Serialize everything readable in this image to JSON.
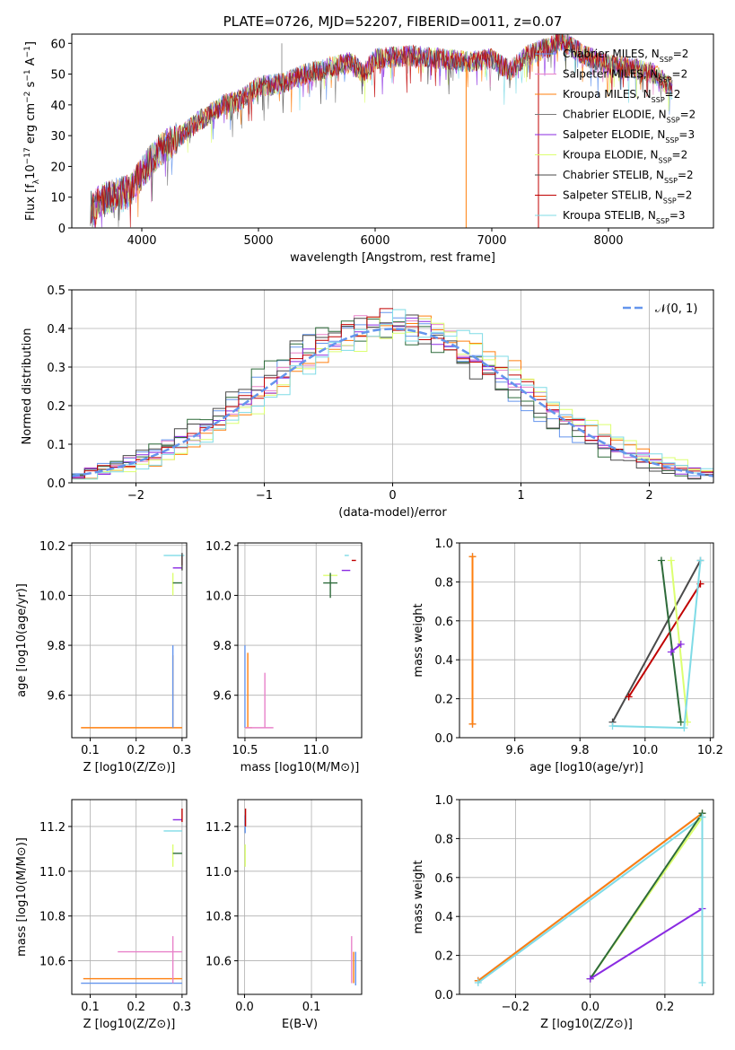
{
  "colors": {
    "Chabrier MILES": "#6495ed",
    "Salpeter MILES": "#e882c9",
    "Kroupa MILES": "#ff7f0e",
    "Chabrier ELODIE": "#e0e0e0",
    "Salpeter ELODIE": "#8a2be2",
    "Kroupa ELODIE": "#dcff70",
    "Chabrier STELIB": "#4a4a4a",
    "Salpeter STELIB": "#c00000",
    "Kroupa STELIB": "#7fdbe6",
    "normal": "#6495ed",
    "grid": "#b0b0b0"
  },
  "chart_data": [
    {
      "id": "spectrum",
      "type": "line",
      "title": "PLATE=0726, MJD=52207, FIBERID=0011, z=0.07",
      "xlabel": "wavelength [Angstrom, rest frame]",
      "ylabel_parts": [
        "Flux [f",
        "λ",
        "10",
        "−17",
        " erg cm",
        "−2",
        " s",
        "−1",
        " A",
        "−1",
        "]"
      ],
      "xlim": [
        3400,
        8900
      ],
      "ylim": [
        0,
        63
      ],
      "xticks": [
        4000,
        5000,
        6000,
        7000,
        8000
      ],
      "yticks": [
        0,
        10,
        20,
        30,
        40,
        50,
        60
      ],
      "grid": false,
      "legend_position": "right",
      "legend": [
        {
          "model": "Chabrier MILES",
          "nssp": "2"
        },
        {
          "model": "Salpeter MILES",
          "nssp": "2"
        },
        {
          "model": "Kroupa MILES",
          "nssp": "2"
        },
        {
          "model": "Chabrier ELODIE",
          "nssp": "2"
        },
        {
          "model": "Salpeter ELODIE",
          "nssp": "3"
        },
        {
          "model": "Kroupa ELODIE",
          "nssp": "2"
        },
        {
          "model": "Chabrier STELIB",
          "nssp": "2"
        },
        {
          "model": "Salpeter STELIB",
          "nssp": "2"
        },
        {
          "model": "Kroupa STELIB",
          "nssp": "3"
        }
      ],
      "continuum": [
        [
          3560,
          7
        ],
        [
          3700,
          10
        ],
        [
          3900,
          12
        ],
        [
          4000,
          18
        ],
        [
          4150,
          25
        ],
        [
          4300,
          29
        ],
        [
          4500,
          35
        ],
        [
          4700,
          40
        ],
        [
          4860,
          42
        ],
        [
          5000,
          46
        ],
        [
          5200,
          47
        ],
        [
          5400,
          50
        ],
        [
          5600,
          52
        ],
        [
          5800,
          54
        ],
        [
          5900,
          50
        ],
        [
          6000,
          55
        ],
        [
          6300,
          56
        ],
        [
          6563,
          55
        ],
        [
          6800,
          54
        ],
        [
          7000,
          55
        ],
        [
          7150,
          51
        ],
        [
          7300,
          56
        ],
        [
          7500,
          59
        ],
        [
          7600,
          61
        ],
        [
          7800,
          56
        ],
        [
          8000,
          53
        ],
        [
          8200,
          52
        ],
        [
          8400,
          50
        ],
        [
          8550,
          45
        ]
      ],
      "spikes": [
        {
          "x": 5200,
          "y": 60,
          "color": "#9a9a9a"
        },
        {
          "x": 6780,
          "y": 0,
          "color": "#ff7f0e"
        },
        {
          "x": 7400,
          "y": 0,
          "color": "#c00000"
        }
      ]
    },
    {
      "id": "residuals",
      "type": "bar",
      "xlabel": "(data-model)/error",
      "ylabel": "Normed distribution",
      "xlim": [
        -2.5,
        2.5
      ],
      "ylim": [
        0,
        0.5
      ],
      "xticks": [
        -2,
        -1,
        0,
        1,
        2
      ],
      "yticks": [
        0.0,
        0.1,
        0.2,
        0.3,
        0.4,
        0.5
      ],
      "grid": true,
      "legend_position": "top-right",
      "legend_label": "N(0, 1)",
      "bin_width": 0.1,
      "note": "nine step histograms; one per model",
      "normal_mean": 0,
      "normal_std": 1
    },
    {
      "id": "age-vs-Z",
      "type": "scatter",
      "xlabel": "Z [log10(Z/Z⊙)]",
      "ylabel": "age [log10(age/yr)]",
      "xlim": [
        0.06,
        0.31
      ],
      "ylim": [
        9.43,
        10.21
      ],
      "xticks": [
        0.1,
        0.2,
        0.3
      ],
      "yticks": [
        9.6,
        9.8,
        10.0,
        10.2
      ],
      "grid": true,
      "segments": [
        {
          "color": "#ff7f0e",
          "x1": 0.08,
          "y1": 9.47,
          "x2": 0.3,
          "y2": 9.47
        },
        {
          "color": "#ff7f0e",
          "x1": 0.28,
          "y1": 9.47,
          "x2": 0.28,
          "y2": 9.76
        },
        {
          "color": "#6495ed",
          "x1": 0.28,
          "y1": 9.47,
          "x2": 0.28,
          "y2": 9.8
        },
        {
          "color": "#7fdbe6",
          "x1": 0.26,
          "y1": 10.16,
          "x2": 0.305,
          "y2": 10.16
        },
        {
          "color": "#c00000",
          "x1": 0.3,
          "y1": 10.12,
          "x2": 0.3,
          "y2": 10.16
        },
        {
          "color": "#8a2be2",
          "x1": 0.28,
          "y1": 10.11,
          "x2": 0.3,
          "y2": 10.11
        },
        {
          "color": "#dcff70",
          "x1": 0.28,
          "y1": 10.0,
          "x2": 0.28,
          "y2": 10.09
        },
        {
          "color": "#2e6b3a",
          "x1": 0.28,
          "y1": 10.05,
          "x2": 0.3,
          "y2": 10.05
        },
        {
          "color": "#4a4a4a",
          "x1": 0.3,
          "y1": 10.1,
          "x2": 0.3,
          "y2": 10.17
        }
      ]
    },
    {
      "id": "age-vs-mass",
      "type": "scatter",
      "xlabel": "mass [log10(M/M⊙)]",
      "xlim": [
        10.45,
        11.32
      ],
      "ylim": [
        9.43,
        10.21
      ],
      "xticks": [
        10.5,
        11.0
      ],
      "yticks": [
        9.6,
        9.8,
        10.0,
        10.2
      ],
      "grid": true,
      "segments": [
        {
          "color": "#6495ed",
          "x1": 10.5,
          "y1": 9.47,
          "x2": 10.5,
          "y2": 9.8
        },
        {
          "color": "#ff7f0e",
          "x1": 10.52,
          "y1": 9.47,
          "x2": 10.52,
          "y2": 9.77
        },
        {
          "color": "#ff7f0e",
          "x1": 10.5,
          "y1": 9.47,
          "x2": 10.55,
          "y2": 9.47
        },
        {
          "color": "#e882c9",
          "x1": 10.5,
          "y1": 9.47,
          "x2": 10.7,
          "y2": 9.47
        },
        {
          "color": "#e882c9",
          "x1": 10.64,
          "y1": 9.47,
          "x2": 10.64,
          "y2": 9.69
        },
        {
          "color": "#dcff70",
          "x1": 11.05,
          "y1": 10.08,
          "x2": 11.15,
          "y2": 10.08
        },
        {
          "color": "#2e6b3a",
          "x1": 11.05,
          "y1": 10.05,
          "x2": 11.15,
          "y2": 10.05
        },
        {
          "color": "#2e6b3a",
          "x1": 11.1,
          "y1": 9.99,
          "x2": 11.1,
          "y2": 10.09
        },
        {
          "color": "#8a2be2",
          "x1": 11.18,
          "y1": 10.1,
          "x2": 11.24,
          "y2": 10.1
        },
        {
          "color": "#c00000",
          "x1": 11.25,
          "y1": 10.14,
          "x2": 11.28,
          "y2": 10.14
        },
        {
          "color": "#7fdbe6",
          "x1": 11.2,
          "y1": 10.16,
          "x2": 11.23,
          "y2": 10.16
        }
      ]
    },
    {
      "id": "mass-weight-vs-age",
      "type": "line",
      "xlabel": "age [log10(age/yr)]",
      "ylabel": "mass weight",
      "xlim": [
        9.43,
        10.21
      ],
      "ylim": [
        0,
        1
      ],
      "xticks": [
        9.6,
        9.8,
        10.0,
        10.2
      ],
      "yticks": [
        0.0,
        0.2,
        0.4,
        0.6,
        0.8,
        1.0
      ],
      "grid": true,
      "series": [
        {
          "color": "#6495ed",
          "x": [
            9.47,
            9.47
          ],
          "y": [
            0.07,
            0.93
          ]
        },
        {
          "color": "#ff7f0e",
          "x": [
            9.47,
            9.47
          ],
          "y": [
            0.07,
            0.93
          ]
        },
        {
          "color": "#4a4a4a",
          "x": [
            9.9,
            10.17
          ],
          "y": [
            0.08,
            0.91
          ]
        },
        {
          "color": "#c00000",
          "x": [
            9.95,
            10.17
          ],
          "y": [
            0.21,
            0.79
          ]
        },
        {
          "color": "#2e6b3a",
          "x": [
            10.05,
            10.11
          ],
          "y": [
            0.91,
            0.08
          ]
        },
        {
          "color": "#dcff70",
          "x": [
            10.08,
            10.13
          ],
          "y": [
            0.91,
            0.08
          ]
        },
        {
          "color": "#8a2be2",
          "x": [
            10.08,
            10.11
          ],
          "y": [
            0.44,
            0.48
          ]
        },
        {
          "color": "#7fdbe6",
          "x": [
            9.9,
            10.12,
            10.17
          ],
          "y": [
            0.06,
            0.05,
            0.91
          ]
        }
      ]
    },
    {
      "id": "mass-vs-Z",
      "type": "scatter",
      "xlabel": "Z [log10(Z/Z⊙)]",
      "ylabel": "mass [log10(M/M⊙)]",
      "xlim": [
        0.06,
        0.31
      ],
      "ylim": [
        10.45,
        11.32
      ],
      "xticks": [
        0.1,
        0.2,
        0.3
      ],
      "yticks": [
        10.6,
        10.8,
        11.0,
        11.2
      ],
      "grid": true,
      "segments": [
        {
          "color": "#6495ed",
          "x1": 0.08,
          "y1": 10.5,
          "x2": 0.3,
          "y2": 10.5
        },
        {
          "color": "#ff7f0e",
          "x1": 0.085,
          "y1": 10.52,
          "x2": 0.3,
          "y2": 10.52
        },
        {
          "color": "#e882c9",
          "x1": 0.16,
          "y1": 10.64,
          "x2": 0.3,
          "y2": 10.64
        },
        {
          "color": "#e882c9",
          "x1": 0.28,
          "y1": 10.5,
          "x2": 0.28,
          "y2": 10.71
        },
        {
          "color": "#7fdbe6",
          "x1": 0.26,
          "y1": 11.18,
          "x2": 0.3,
          "y2": 11.18
        },
        {
          "color": "#dcff70",
          "x1": 0.28,
          "y1": 11.02,
          "x2": 0.28,
          "y2": 11.12
        },
        {
          "color": "#2e6b3a",
          "x1": 0.28,
          "y1": 11.08,
          "x2": 0.3,
          "y2": 11.08
        },
        {
          "color": "#8a2be2",
          "x1": 0.28,
          "y1": 11.23,
          "x2": 0.3,
          "y2": 11.23
        },
        {
          "color": "#c00000",
          "x1": 0.3,
          "y1": 11.22,
          "x2": 0.3,
          "y2": 11.28
        }
      ]
    },
    {
      "id": "mass-vs-EBV",
      "type": "scatter",
      "xlabel": "E(B-V)",
      "xlim": [
        -0.01,
        0.175
      ],
      "ylim": [
        10.45,
        11.32
      ],
      "xticks": [
        0.0,
        0.1
      ],
      "yticks": [
        10.6,
        10.8,
        11.0,
        11.2
      ],
      "grid": true,
      "segments": [
        {
          "color": "#6495ed",
          "x1": 0.001,
          "y1": 11.17,
          "x2": 0.001,
          "y2": 11.25
        },
        {
          "color": "#dcff70",
          "x1": 0.001,
          "y1": 11.02,
          "x2": 0.001,
          "y2": 11.12
        },
        {
          "color": "#c00000",
          "x1": 0.0015,
          "y1": 11.2,
          "x2": 0.0015,
          "y2": 11.28
        },
        {
          "color": "#e882c9",
          "x1": 0.16,
          "y1": 10.5,
          "x2": 0.16,
          "y2": 10.71
        },
        {
          "color": "#ff7f0e",
          "x1": 0.163,
          "y1": 10.5,
          "x2": 0.163,
          "y2": 10.64
        },
        {
          "color": "#6495ed",
          "x1": 0.166,
          "y1": 10.49,
          "x2": 0.166,
          "y2": 10.64
        }
      ]
    },
    {
      "id": "mass-weight-vs-Z",
      "type": "line",
      "xlabel": "Z [log10(Z/Z⊙)]",
      "ylabel": "mass weight",
      "xlim": [
        -0.35,
        0.33
      ],
      "ylim": [
        0,
        1
      ],
      "xticks": [
        -0.2,
        0.0,
        0.2
      ],
      "yticks": [
        0.0,
        0.2,
        0.4,
        0.6,
        0.8,
        1.0
      ],
      "grid": true,
      "series": [
        {
          "color": "#6495ed",
          "x": [
            -0.3,
            0.3
          ],
          "y": [
            0.07,
            0.93
          ]
        },
        {
          "color": "#ff7f0e",
          "x": [
            -0.3,
            0.3
          ],
          "y": [
            0.07,
            0.93
          ]
        },
        {
          "color": "#7fdbe6",
          "x": [
            -0.3,
            0.3
          ],
          "y": [
            0.06,
            0.91
          ]
        },
        {
          "color": "#dcff70",
          "x": [
            0.0,
            0.3
          ],
          "y": [
            0.08,
            0.91
          ]
        },
        {
          "color": "#2e6b3a",
          "x": [
            0.0,
            0.3
          ],
          "y": [
            0.08,
            0.93
          ]
        },
        {
          "color": "#8a2be2",
          "x": [
            0.0,
            0.3
          ],
          "y": [
            0.08,
            0.44
          ]
        },
        {
          "color": "#7fdbe6",
          "x": [
            0.3,
            0.3
          ],
          "y": [
            0.06,
            0.91
          ]
        }
      ]
    }
  ]
}
